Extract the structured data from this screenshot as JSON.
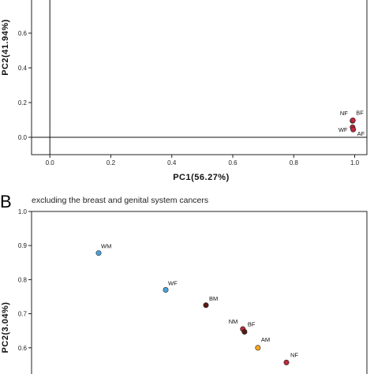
{
  "chart_data": [
    {
      "type": "scatter",
      "title": "",
      "xlabel": "PC1(56.27%)",
      "ylabel": "PC2(41.94%)",
      "xlim": [
        -0.06,
        1.04
      ],
      "ylim": [
        -0.1,
        0.8
      ],
      "x_ticks": [
        "0.0",
        "0.2",
        "0.4",
        "0.6",
        "0.8",
        "1.0"
      ],
      "y_ticks": [
        "0.0",
        "0.2",
        "0.4",
        "0.6"
      ],
      "x_tick_values": [
        0.0,
        0.2,
        0.4,
        0.6,
        0.8,
        1.0
      ],
      "y_tick_values": [
        0.0,
        0.2,
        0.4,
        0.6
      ],
      "reference_lines": {
        "x": 0,
        "y": 0
      },
      "points": [
        {
          "label": "NF",
          "x": 0.993,
          "y": 0.095,
          "color": "#c0283c"
        },
        {
          "label": "BF",
          "x": 0.994,
          "y": 0.098,
          "color": "#c0283c"
        },
        {
          "label": "WF",
          "x": 0.993,
          "y": 0.058,
          "color": "#c0283c"
        },
        {
          "label": "AF",
          "x": 0.995,
          "y": 0.045,
          "color": "#c0283c"
        }
      ]
    },
    {
      "type": "scatter",
      "panel_letter": "B",
      "subtitle": "excluding the breast and genital system cancers",
      "xlabel": "",
      "ylabel": "PC2(3.04%)",
      "xlim": [
        0.0,
        1.0
      ],
      "ylim": [
        0.5,
        1.0
      ],
      "y_ticks": [
        "0.6",
        "0.7",
        "0.8",
        "0.9",
        "1.0"
      ],
      "y_tick_values": [
        0.6,
        0.7,
        0.8,
        0.9,
        1.0
      ],
      "points": [
        {
          "label": "WM",
          "x": 0.2,
          "y": 0.878,
          "color": "#4aa3dc"
        },
        {
          "label": "WF",
          "x": 0.4,
          "y": 0.77,
          "color": "#4aa3dc"
        },
        {
          "label": "BM",
          "x": 0.52,
          "y": 0.725,
          "color": "#5a1a10"
        },
        {
          "label": "NM",
          "x": 0.63,
          "y": 0.655,
          "color": "#c0283c"
        },
        {
          "label": "BF",
          "x": 0.635,
          "y": 0.647,
          "color": "#5a1a10"
        },
        {
          "label": "AM",
          "x": 0.675,
          "y": 0.6,
          "color": "#f5a623"
        },
        {
          "label": "NF",
          "x": 0.76,
          "y": 0.557,
          "color": "#c0283c"
        }
      ]
    }
  ]
}
